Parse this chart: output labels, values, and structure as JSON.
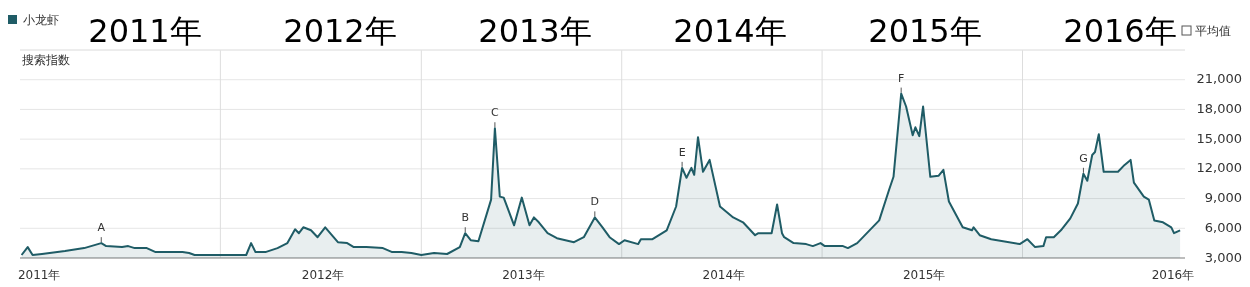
{
  "chart_data": {
    "type": "area",
    "ylabel": "搜索指数",
    "legend": "top left",
    "grid": "y",
    "xlim": [
      "2011-01-01",
      "2016-10-23"
    ],
    "ylim": [
      3000,
      24000
    ],
    "yticks": [
      {
        "value": 3000,
        "label": "3,000"
      },
      {
        "value": 6000,
        "label": "6,000"
      },
      {
        "value": 9000,
        "label": "9,000"
      },
      {
        "value": 12000,
        "label": "12,000"
      },
      {
        "value": 15000,
        "label": "15,000"
      },
      {
        "value": 18000,
        "label": "18,000"
      },
      {
        "value": 21000,
        "label": "21,000"
      },
      {
        "value": 24000,
        "label": null
      }
    ],
    "xticks": [
      {
        "value": "2011-02-05",
        "label": "2011年"
      },
      {
        "value": "2012-07-06",
        "label": "2012年"
      },
      {
        "value": "2013-07-06",
        "label": "2013年"
      },
      {
        "value": "2014-07-06",
        "label": "2014年"
      },
      {
        "value": "2015-07-06",
        "label": "2015年"
      },
      {
        "value": "2016-10-01",
        "label": "2016年"
      }
    ],
    "ref_lines": [
      {
        "axis": "x",
        "value": "2012-01-01",
        "color": "#dddddd"
      },
      {
        "axis": "x",
        "value": "2013-01-01",
        "color": "#dddddd"
      },
      {
        "axis": "x",
        "value": "2014-01-01",
        "color": "#dddddd"
      },
      {
        "axis": "x",
        "value": "2015-01-01",
        "color": "#dddddd"
      },
      {
        "axis": "x",
        "value": "2016-01-01",
        "color": "#dddddd"
      }
    ],
    "annotations": [
      "2011年",
      "2012年",
      "2013年",
      "2014年",
      "2015年",
      "2016年",
      "平均值",
      {
        "text": "A",
        "x": "2011-05-29",
        "y": 4500
      },
      {
        "text": "B",
        "x": "2013-03-22",
        "y": 5500
      },
      {
        "text": "C",
        "x": "2013-05-15",
        "y": 16100
      },
      {
        "text": "D",
        "x": "2013-11-13",
        "y": 7100
      },
      {
        "text": "E",
        "x": "2014-04-21",
        "y": 12100
      },
      {
        "text": "F",
        "x": "2015-05-25",
        "y": 19600
      },
      {
        "text": "G",
        "x": "2016-04-21",
        "y": 11500
      }
    ],
    "series": [
      {
        "name": "小龙虾",
        "color": "#1f5c66",
        "x": [
          "2011-01-04",
          "2011-01-15",
          "2011-01-24",
          "2011-02-10",
          "2011-03-24",
          "2011-04-28",
          "2011-05-29",
          "2011-06-07",
          "2011-07-06",
          "2011-07-17",
          "2011-07-29",
          "2011-08-20",
          "2011-09-05",
          "2011-10-24",
          "2011-11-05",
          "2011-11-15",
          "2012-02-17",
          "2012-02-26",
          "2012-03-05",
          "2012-03-23",
          "2012-04-14",
          "2012-05-02",
          "2012-05-16",
          "2012-05-23",
          "2012-05-31",
          "2012-06-14",
          "2012-06-26",
          "2012-07-10",
          "2012-08-02",
          "2012-08-19",
          "2012-08-31",
          "2012-09-23",
          "2012-10-23",
          "2012-11-09",
          "2012-11-26",
          "2012-12-14",
          "2013-01-01",
          "2013-01-24",
          "2013-02-17",
          "2013-03-12",
          "2013-03-22",
          "2013-04-01",
          "2013-04-15",
          "2013-05-08",
          "2013-05-15",
          "2013-05-24",
          "2013-05-31",
          "2013-06-19",
          "2013-07-03",
          "2013-07-17",
          "2013-07-25",
          "2013-08-03",
          "2013-08-19",
          "2013-09-05",
          "2013-10-06",
          "2013-10-24",
          "2013-11-13",
          "2013-11-27",
          "2013-12-10",
          "2013-12-27",
          "2014-01-06",
          "2014-01-31",
          "2014-02-05",
          "2014-02-26",
          "2014-03-24",
          "2014-04-10",
          "2014-04-21",
          "2014-04-29",
          "2014-05-08",
          "2014-05-13",
          "2014-05-20",
          "2014-05-29",
          "2014-06-10",
          "2014-06-29",
          "2014-07-23",
          "2014-08-10",
          "2014-09-01",
          "2014-09-07",
          "2014-10-01",
          "2014-10-11",
          "2014-10-20",
          "2014-10-24",
          "2014-11-10",
          "2014-12-03",
          "2014-12-15",
          "2014-12-29",
          "2015-01-06",
          "2015-02-08",
          "2015-02-17",
          "2015-03-06",
          "2015-04-15",
          "2015-05-03",
          "2015-05-11",
          "2015-05-25",
          "2015-06-03",
          "2015-06-15",
          "2015-06-20",
          "2015-06-27",
          "2015-07-04",
          "2015-07-17",
          "2015-08-01",
          "2015-08-10",
          "2015-08-20",
          "2015-09-14",
          "2015-10-01",
          "2015-10-04",
          "2015-10-15",
          "2015-11-05",
          "2015-12-27",
          "2016-01-10",
          "2016-01-24",
          "2016-02-08",
          "2016-02-13",
          "2016-02-27",
          "2016-03-11",
          "2016-03-28",
          "2016-04-11",
          "2016-04-21",
          "2016-04-28",
          "2016-05-07",
          "2016-05-12",
          "2016-05-19",
          "2016-05-28",
          "2016-06-23",
          "2016-07-05",
          "2016-07-16",
          "2016-07-22",
          "2016-08-09",
          "2016-08-18",
          "2016-08-28",
          "2016-09-13",
          "2016-09-28",
          "2016-10-03",
          "2016-10-14"
        ],
        "values": [
          3300,
          4100,
          3300,
          3400,
          3700,
          4000,
          4500,
          4200,
          4100,
          4200,
          4000,
          4000,
          3600,
          3600,
          3500,
          3300,
          3300,
          4500,
          3600,
          3600,
          4000,
          4500,
          5900,
          5500,
          6100,
          5800,
          5100,
          6100,
          4600,
          4500,
          4100,
          4100,
          4000,
          3600,
          3600,
          3500,
          3300,
          3500,
          3400,
          4100,
          5500,
          4800,
          4700,
          8900,
          16100,
          9200,
          9100,
          6300,
          9100,
          6300,
          7100,
          6600,
          5500,
          5000,
          4600,
          5100,
          7100,
          6100,
          5100,
          4400,
          4800,
          4400,
          4900,
          4900,
          5800,
          8200,
          12100,
          11100,
          12100,
          11400,
          15200,
          11700,
          12900,
          8200,
          7100,
          6600,
          5300,
          5500,
          5500,
          8400,
          5500,
          5100,
          4500,
          4400,
          4200,
          4500,
          4200,
          4200,
          4000,
          4500,
          6800,
          9900,
          11200,
          19600,
          18300,
          15400,
          16200,
          15300,
          18300,
          11200,
          11300,
          11900,
          8700,
          6100,
          5800,
          6100,
          5300,
          4900,
          4400,
          4900,
          4100,
          4200,
          5100,
          5100,
          5800,
          7000,
          8500,
          11500,
          10800,
          13400,
          13700,
          15500,
          11700,
          11700,
          12400,
          12900,
          10600,
          9200,
          8900,
          6800,
          6600,
          6100,
          5500,
          5800
        ]
      }
    ]
  }
}
